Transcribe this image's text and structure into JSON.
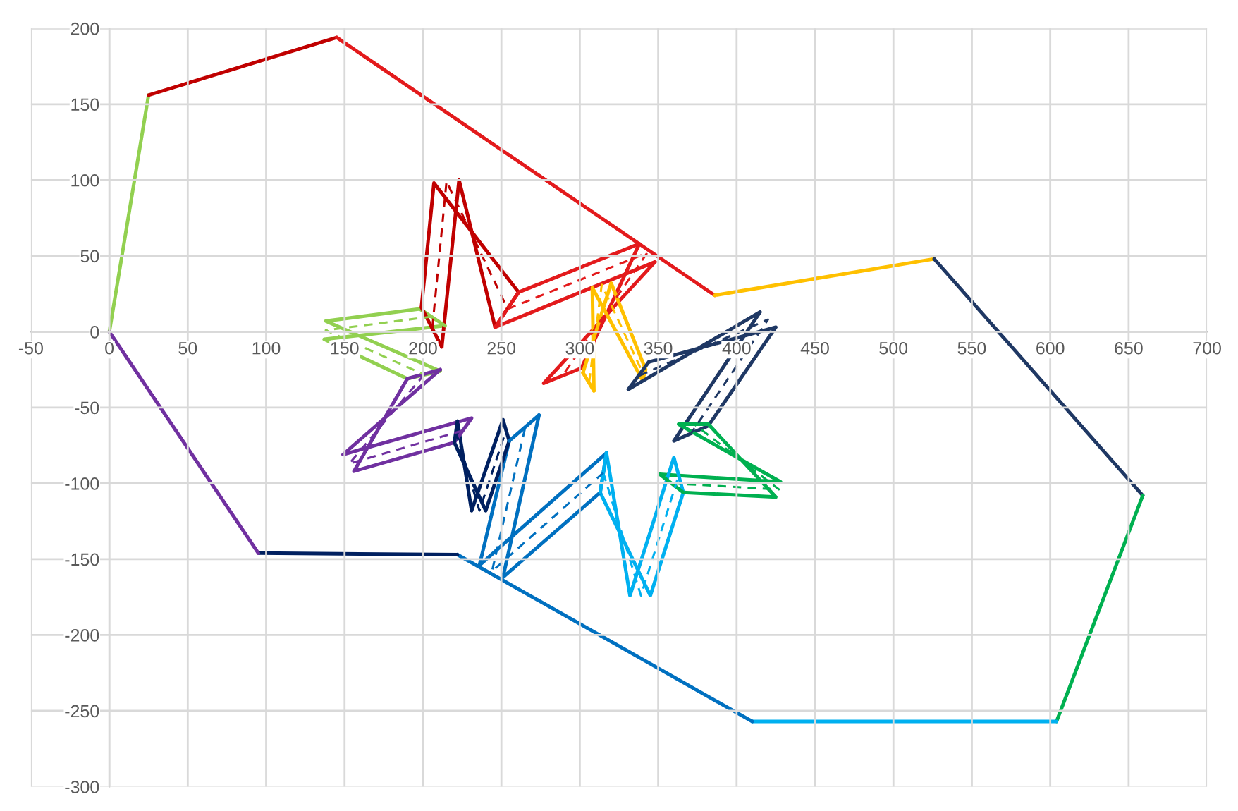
{
  "chart_data": {
    "type": "line",
    "xlim": [
      -50,
      700
    ],
    "ylim": [
      -300,
      200
    ],
    "xticks": [
      -50,
      0,
      50,
      100,
      150,
      200,
      250,
      300,
      350,
      400,
      450,
      500,
      550,
      600,
      650,
      700
    ],
    "yticks": [
      -300,
      -250,
      -200,
      -150,
      -100,
      -50,
      0,
      50,
      100,
      150,
      200
    ],
    "grid": true,
    "series": [
      {
        "color": "#92d050",
        "x": [
          0,
          25
        ],
        "values": [
          0,
          156
        ]
      },
      {
        "color": "#c00000",
        "x": [
          25,
          145
        ],
        "values": [
          156,
          194
        ]
      },
      {
        "color": "#e31a1c",
        "x": [
          145,
          386
        ],
        "values": [
          194,
          24
        ]
      },
      {
        "color": "#ffc000",
        "x": [
          386,
          526
        ],
        "values": [
          24,
          48
        ]
      },
      {
        "color": "#1f3864",
        "x": [
          526,
          659
        ],
        "values": [
          48,
          -108
        ]
      },
      {
        "color": "#00b050",
        "x": [
          659,
          604
        ],
        "values": [
          -108,
          -257
        ]
      },
      {
        "color": "#00b0f0",
        "x": [
          604,
          410
        ],
        "values": [
          -257,
          -257
        ]
      },
      {
        "color": "#0070c0",
        "x": [
          410,
          222
        ],
        "values": [
          -257,
          -147
        ]
      },
      {
        "color": "#002060",
        "x": [
          222,
          95
        ],
        "values": [
          -147,
          -146
        ]
      },
      {
        "color": "#7030a0",
        "x": [
          95,
          0
        ],
        "values": [
          -146,
          0
        ]
      },
      {
        "color": "#92d050",
        "x": [
          198,
          138,
          211,
          190,
          137,
          214
        ],
        "values": [
          15,
          7,
          -26,
          -31,
          -5,
          4
        ]
      },
      {
        "color": "#c00000",
        "x": [
          199,
          207,
          261,
          246,
          223,
          212
        ],
        "values": [
          16,
          98,
          26,
          3,
          100,
          -10
        ]
      },
      {
        "color": "#e31a1c",
        "x": [
          261,
          338,
          301,
          277,
          348,
          246
        ],
        "values": [
          26,
          58,
          -24,
          -34,
          46,
          3
        ]
      },
      {
        "color": "#ffc000",
        "x": [
          309,
          308,
          340,
          342,
          320,
          302
        ],
        "values": [
          -39,
          29,
          -32,
          -25,
          32,
          -27
        ]
      },
      {
        "color": "#1f3864",
        "x": [
          331,
          415,
          360,
          382,
          425,
          344
        ],
        "values": [
          -38,
          13,
          -72,
          -62,
          3,
          -20
        ]
      },
      {
        "color": "#00b050",
        "x": [
          366,
          425,
          382,
          363,
          428,
          351
        ],
        "values": [
          -106,
          -109,
          -61,
          -61,
          -99,
          -94
        ]
      },
      {
        "color": "#00b0f0",
        "x": [
          317,
          332,
          360,
          366,
          345,
          313
        ],
        "values": [
          -80,
          -174,
          -83,
          -106,
          -174,
          -106
        ]
      },
      {
        "color": "#0070c0",
        "x": [
          255,
          236,
          317,
          313,
          251,
          274
        ],
        "values": [
          -72,
          -154,
          -80,
          -106,
          -162,
          -55
        ]
      },
      {
        "color": "#002060",
        "x": [
          222,
          231,
          251,
          255,
          240,
          220
        ],
        "values": [
          -59,
          -118,
          -58,
          -72,
          -118,
          -73
        ]
      },
      {
        "color": "#7030a0",
        "x": [
          211,
          149,
          231,
          220,
          156,
          190
        ],
        "values": [
          -25,
          -81,
          -57,
          -73,
          -92,
          -31
        ]
      },
      {
        "color": "#92d050",
        "x": [
          214,
          198
        ],
        "values": [
          4,
          15
        ]
      },
      {
        "color": "#c00000",
        "x": [
          212,
          199
        ],
        "values": [
          -10,
          16
        ]
      },
      {
        "color": "#e31a1c",
        "x": [
          246,
          261
        ],
        "values": [
          3,
          26
        ]
      },
      {
        "color": "#ffc000",
        "x": [
          302,
          309
        ],
        "values": [
          -27,
          -39
        ]
      },
      {
        "color": "#1f3864",
        "x": [
          344,
          331
        ],
        "values": [
          -20,
          -38
        ]
      },
      {
        "color": "#00b050",
        "x": [
          351,
          366
        ],
        "values": [
          -94,
          -106
        ]
      },
      {
        "color": "#00b0f0",
        "x": [
          313,
          317
        ],
        "values": [
          -106,
          -80
        ]
      },
      {
        "color": "#0070c0",
        "x": [
          274,
          255
        ],
        "values": [
          -55,
          -72
        ]
      },
      {
        "color": "#002060",
        "x": [
          220,
          222
        ],
        "values": [
          -73,
          -59
        ]
      },
      {
        "color": "#7030a0",
        "x": [
          190,
          211
        ],
        "values": [
          -31,
          -25
        ]
      },
      {
        "color": "#92d050",
        "line_style": "dashed",
        "x": [
          206,
          138,
          200
        ],
        "values": [
          10,
          1,
          -28
        ]
      },
      {
        "color": "#c00000",
        "line_style": "dashed",
        "x": [
          206,
          215,
          254
        ],
        "values": [
          3,
          99,
          15
        ]
      },
      {
        "color": "#e31a1c",
        "line_style": "dashed",
        "x": [
          254,
          343,
          289
        ],
        "values": [
          15,
          52,
          -29
        ]
      },
      {
        "color": "#ffc000",
        "line_style": "dashed",
        "x": [
          306,
          314,
          341
        ],
        "values": [
          -33,
          31,
          -29
        ]
      },
      {
        "color": "#1f3864",
        "line_style": "dashed",
        "x": [
          338,
          420,
          371
        ],
        "values": [
          -29,
          8,
          -67
        ]
      },
      {
        "color": "#00b050",
        "line_style": "dashed",
        "x": [
          359,
          427,
          373
        ],
        "values": [
          -100,
          -104,
          -61
        ]
      },
      {
        "color": "#00b0f0",
        "line_style": "dashed",
        "x": [
          315,
          339,
          363
        ],
        "values": [
          -93,
          -174,
          -95
        ]
      },
      {
        "color": "#0070c0",
        "line_style": "dashed",
        "x": [
          265,
          244,
          315
        ],
        "values": [
          -64,
          -158,
          -93
        ]
      },
      {
        "color": "#002060",
        "line_style": "dashed",
        "x": [
          221,
          236,
          253
        ],
        "values": [
          -66,
          -118,
          -65
        ]
      },
      {
        "color": "#7030a0",
        "line_style": "dashed",
        "x": [
          201,
          153,
          226
        ],
        "values": [
          -28,
          -87,
          -65
        ]
      }
    ]
  }
}
